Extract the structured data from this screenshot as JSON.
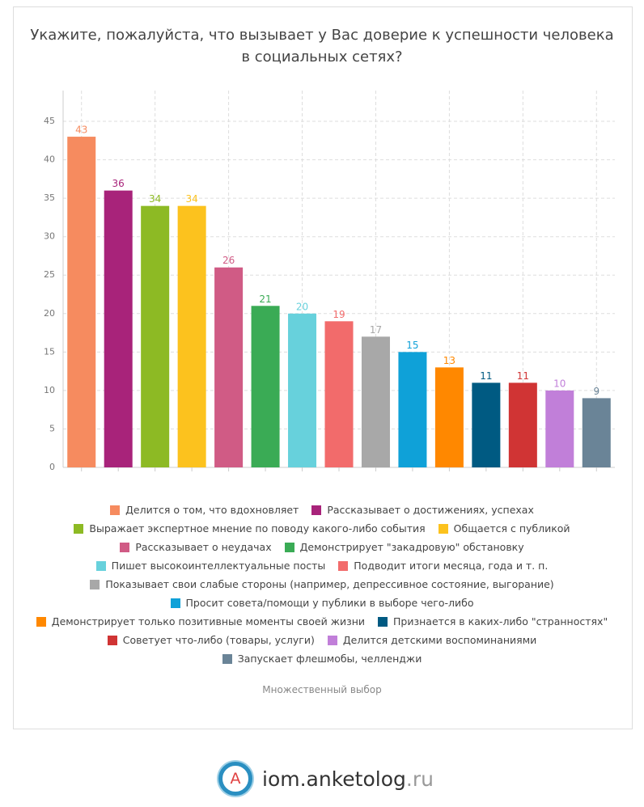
{
  "chart_data": {
    "type": "bar",
    "title": "Укажите, пожалуйста, что вызывает у Вас доверие к успешности человека в социальных сетях?",
    "categories": [
      "Делится о том, что вдохновляет",
      "Рассказывает о достижениях, успехах",
      "Выражает экспертное мнение по поводу какого-либо события",
      "Общается с публикой",
      "Рассказывает о неудачах",
      "Демонстрирует \"закадровую\" обстановку",
      "Пишет высокоинтеллектуальные посты",
      "Подводит итоги месяца, года и т. п.",
      "Показывает свои слабые стороны (например, депрессивное состояние, выгорание)",
      "Просит совета/помощи у публики в выборе чего-либо",
      "Демонстрирует только позитивные моменты своей жизни",
      "Признается в каких-либо \"странностях\"",
      "Советует что-либо (товары, услуги)",
      "Делится детскими воспоминаниями",
      "Запускает флешмобы, челленджи"
    ],
    "values": [
      43,
      36,
      34,
      34,
      26,
      21,
      20,
      19,
      17,
      15,
      13,
      11,
      11,
      10,
      9
    ],
    "colors": [
      "#f68b5f",
      "#a8237a",
      "#8dba24",
      "#fcc21e",
      "#d05b85",
      "#3aab55",
      "#67d1dc",
      "#f26b6b",
      "#a8a8a8",
      "#0fa1d8",
      "#ff8800",
      "#005a82",
      "#d03434",
      "#c17fd9",
      "#6a8497"
    ],
    "ylim": [
      0,
      49
    ],
    "yticks": [
      0,
      5,
      10,
      15,
      20,
      25,
      30,
      35,
      40,
      45
    ],
    "grid": true,
    "note": "Множественный выбор"
  },
  "brand": {
    "letter": "A",
    "name": "iom.anketolog",
    "tld": ".ru"
  }
}
